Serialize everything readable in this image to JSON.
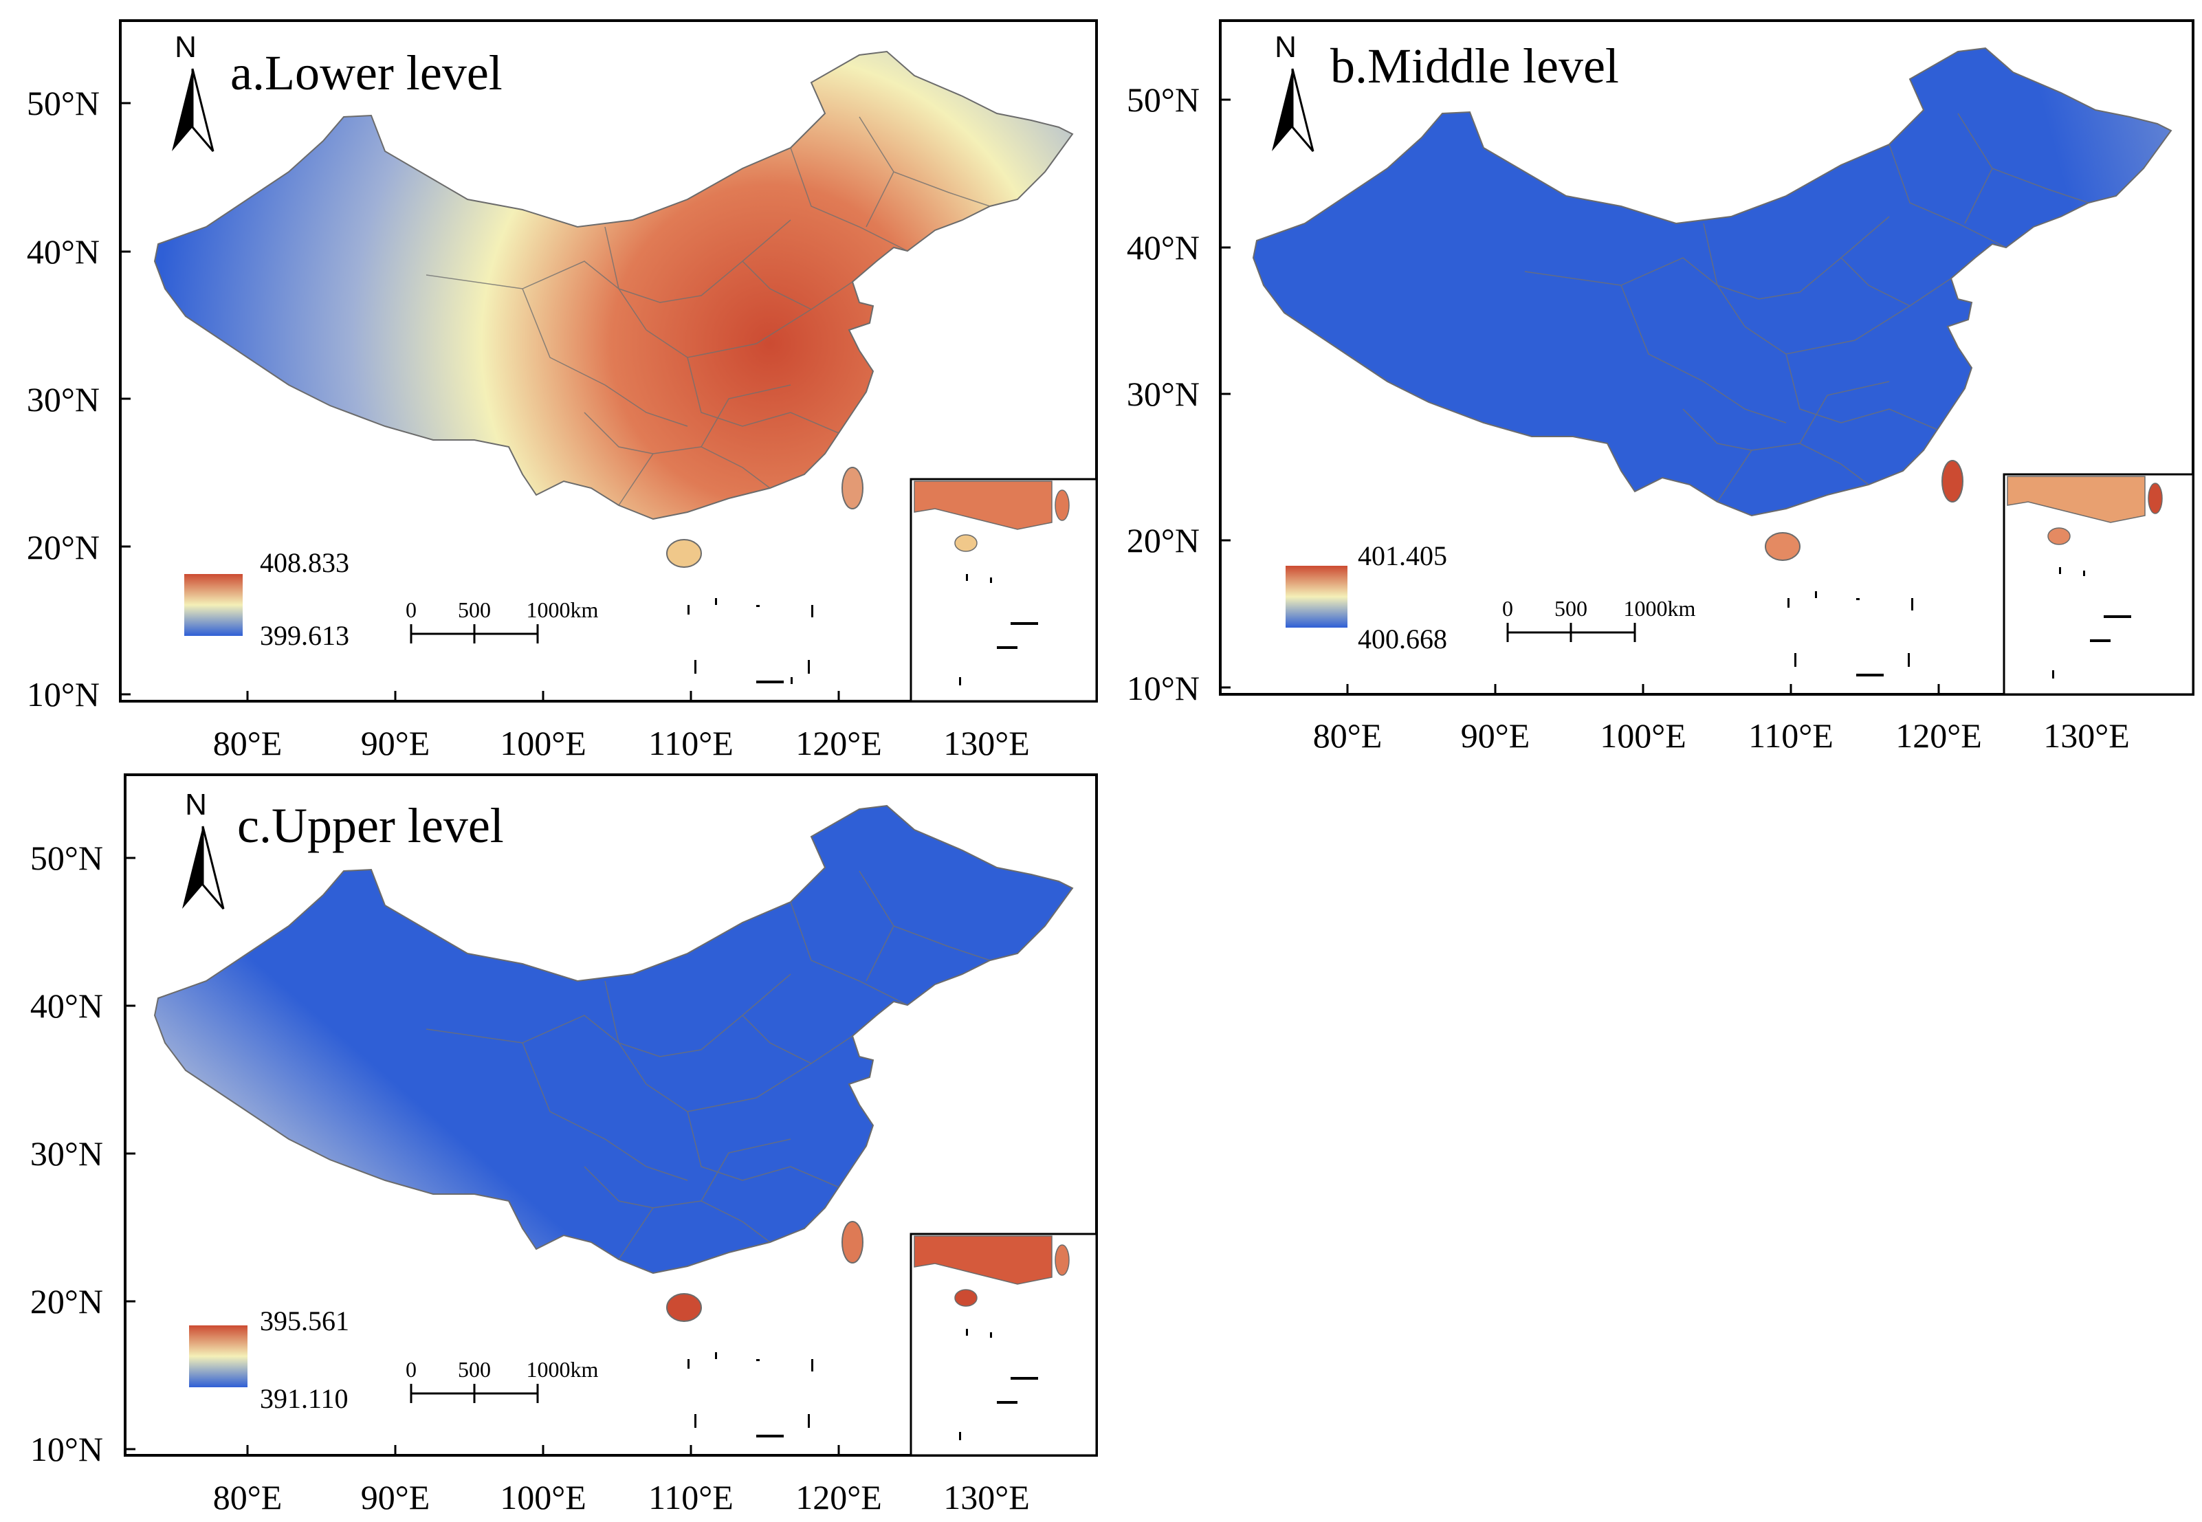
{
  "figure": {
    "panels": [
      {
        "id": "a",
        "title": "a.Lower level",
        "legend": {
          "max": "408.833",
          "min": "399.613"
        },
        "pattern": "east_high"
      },
      {
        "id": "b",
        "title": "b.Middle level",
        "legend": {
          "max": "401.405",
          "min": "400.668"
        },
        "pattern": "southeast_high"
      },
      {
        "id": "c",
        "title": "c.Upper level",
        "legend": {
          "max": "395.561",
          "min": "391.110"
        },
        "pattern": "south_high"
      }
    ],
    "lat_ticks": [
      "50°N",
      "40°N",
      "30°N",
      "20°N",
      "10°N"
    ],
    "lon_ticks": [
      "80°E",
      "90°E",
      "100°E",
      "110°E",
      "120°E",
      "130°E"
    ],
    "lat_values": [
      50,
      40,
      30,
      20,
      10
    ],
    "lon_values": [
      80,
      90,
      100,
      110,
      120,
      130
    ],
    "scale_bar": {
      "labels": [
        "0",
        "500",
        "1000km"
      ]
    },
    "north_arrow": "N",
    "colors": {
      "high": "#cc4b32",
      "mid": "#f4f0b8",
      "low": "#2f5fd6",
      "grey": "#b9bec8",
      "frame": "#000000"
    }
  }
}
